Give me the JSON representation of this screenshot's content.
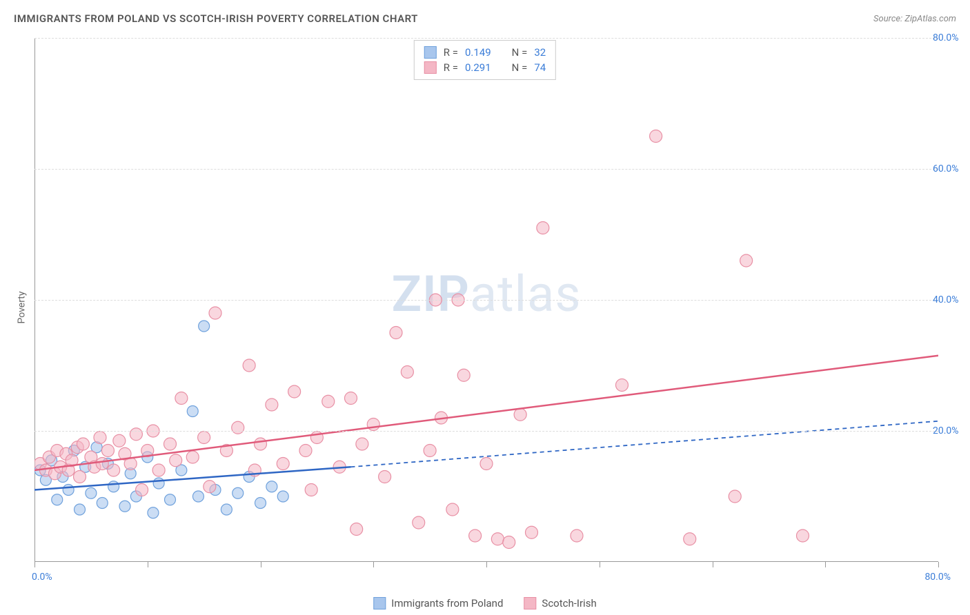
{
  "header": {
    "title": "IMMIGRANTS FROM POLAND VS SCOTCH-IRISH POVERTY CORRELATION CHART",
    "source": "Source: ZipAtlas.com"
  },
  "ylabel": "Poverty",
  "watermark": {
    "zip": "ZIP",
    "atlas": "atlas"
  },
  "chart": {
    "type": "scatter",
    "xlim": [
      0,
      80
    ],
    "ylim": [
      0,
      80
    ],
    "x_axis_origin_label": "0.0%",
    "x_axis_max_label": "80.0%",
    "x_tick_positions": [
      0,
      10,
      20,
      30,
      40,
      50,
      60,
      70,
      80
    ],
    "y_grid": [
      {
        "value": 20,
        "label": "20.0%"
      },
      {
        "value": 40,
        "label": "40.0%"
      },
      {
        "value": 60,
        "label": "60.0%"
      },
      {
        "value": 80,
        "label": "80.0%"
      }
    ],
    "grid_color": "#dddddd",
    "axis_color": "#999999",
    "tick_label_color": "#3b7dd8",
    "series": [
      {
        "id": "poland",
        "label": "Immigrants from Poland",
        "R": "0.149",
        "N": "32",
        "marker_fill": "#a8c6ed",
        "marker_stroke": "#6fa1dc",
        "marker_opacity": 0.6,
        "marker_radius": 8,
        "trend_color": "#2e66c4",
        "trend_solid_x": [
          0,
          28
        ],
        "trend_solid_y": [
          11,
          14.5
        ],
        "trend_dash_x": [
          28,
          80
        ],
        "trend_dash_y": [
          14.5,
          21.5
        ],
        "points": [
          [
            0.5,
            14
          ],
          [
            1.0,
            12.5
          ],
          [
            1.5,
            15.5
          ],
          [
            2.0,
            9.5
          ],
          [
            2.5,
            13
          ],
          [
            3.0,
            11
          ],
          [
            3.5,
            17
          ],
          [
            4.0,
            8
          ],
          [
            4.5,
            14.5
          ],
          [
            5.0,
            10.5
          ],
          [
            5.5,
            17.5
          ],
          [
            6.0,
            9
          ],
          [
            6.5,
            15
          ],
          [
            7.0,
            11.5
          ],
          [
            8.0,
            8.5
          ],
          [
            8.5,
            13.5
          ],
          [
            9.0,
            10
          ],
          [
            10.0,
            16
          ],
          [
            10.5,
            7.5
          ],
          [
            11.0,
            12
          ],
          [
            12.0,
            9.5
          ],
          [
            13.0,
            14
          ],
          [
            14.0,
            23
          ],
          [
            14.5,
            10
          ],
          [
            15.0,
            36
          ],
          [
            16.0,
            11
          ],
          [
            17.0,
            8
          ],
          [
            18.0,
            10.5
          ],
          [
            19.0,
            13
          ],
          [
            20.0,
            9
          ],
          [
            21.0,
            11.5
          ],
          [
            22.0,
            10
          ]
        ]
      },
      {
        "id": "scotch-irish",
        "label": "Scotch-Irish",
        "R": "0.291",
        "N": "74",
        "marker_fill": "#f4b7c5",
        "marker_stroke": "#e88fa4",
        "marker_opacity": 0.55,
        "marker_radius": 9,
        "trend_color": "#e05a7a",
        "trend_solid_x": [
          0,
          80
        ],
        "trend_solid_y": [
          14,
          31.5
        ],
        "trend_dash_x": null,
        "trend_dash_y": null,
        "points": [
          [
            0.5,
            15
          ],
          [
            1.0,
            14
          ],
          [
            1.3,
            16
          ],
          [
            1.8,
            13.5
          ],
          [
            2.0,
            17
          ],
          [
            2.3,
            14.5
          ],
          [
            2.8,
            16.5
          ],
          [
            3.0,
            14
          ],
          [
            3.3,
            15.5
          ],
          [
            3.8,
            17.5
          ],
          [
            4.0,
            13
          ],
          [
            4.3,
            18
          ],
          [
            5.0,
            16
          ],
          [
            5.3,
            14.5
          ],
          [
            5.8,
            19
          ],
          [
            6.0,
            15
          ],
          [
            6.5,
            17
          ],
          [
            7.0,
            14
          ],
          [
            7.5,
            18.5
          ],
          [
            8.0,
            16.5
          ],
          [
            8.5,
            15
          ],
          [
            9.0,
            19.5
          ],
          [
            9.5,
            11
          ],
          [
            10.0,
            17
          ],
          [
            10.5,
            20
          ],
          [
            11.0,
            14
          ],
          [
            12.0,
            18
          ],
          [
            12.5,
            15.5
          ],
          [
            13.0,
            25
          ],
          [
            14.0,
            16
          ],
          [
            15.0,
            19
          ],
          [
            15.5,
            11.5
          ],
          [
            16.0,
            38
          ],
          [
            17.0,
            17
          ],
          [
            18.0,
            20.5
          ],
          [
            19.0,
            30
          ],
          [
            19.5,
            14
          ],
          [
            20.0,
            18
          ],
          [
            21.0,
            24
          ],
          [
            22.0,
            15
          ],
          [
            23.0,
            26
          ],
          [
            24.0,
            17
          ],
          [
            24.5,
            11
          ],
          [
            25.0,
            19
          ],
          [
            26.0,
            24.5
          ],
          [
            27.0,
            14.5
          ],
          [
            28.0,
            25
          ],
          [
            28.5,
            5
          ],
          [
            29.0,
            18
          ],
          [
            30.0,
            21
          ],
          [
            31.0,
            13
          ],
          [
            32.0,
            35
          ],
          [
            33.0,
            29
          ],
          [
            34.0,
            6
          ],
          [
            35.0,
            17
          ],
          [
            35.5,
            40
          ],
          [
            36.0,
            22
          ],
          [
            37.0,
            8
          ],
          [
            37.5,
            40
          ],
          [
            38.0,
            28.5
          ],
          [
            39.0,
            4
          ],
          [
            40.0,
            15
          ],
          [
            41.0,
            3.5
          ],
          [
            42.0,
            3
          ],
          [
            43.0,
            22.5
          ],
          [
            44.0,
            4.5
          ],
          [
            45.0,
            51
          ],
          [
            48.0,
            4
          ],
          [
            52.0,
            27
          ],
          [
            55.0,
            65
          ],
          [
            58.0,
            3.5
          ],
          [
            62.0,
            10
          ],
          [
            63.0,
            46
          ],
          [
            68.0,
            4
          ]
        ]
      }
    ],
    "legend_box": {
      "R_label": "R =",
      "N_label": "N ="
    },
    "bottom_legend": true
  },
  "colors": {
    "title": "#555555",
    "source": "#888888",
    "text": "#666666"
  }
}
